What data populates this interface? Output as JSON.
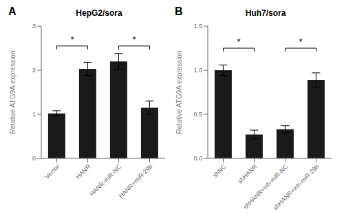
{
  "chart_data": [
    {
      "type": "bar",
      "panel_label": "A",
      "title": "HepG2/sora",
      "categories": [
        "Vector",
        "HANR",
        "HANR-miR-NC",
        "HANR+miR-29b"
      ],
      "values": [
        1.02,
        2.03,
        2.2,
        1.15
      ],
      "errors": [
        0.06,
        0.15,
        0.18,
        0.15
      ],
      "ylabel": "Relative ATG9A expression",
      "ylim": [
        0,
        3.0
      ],
      "yticks": [
        0,
        1,
        2,
        3
      ],
      "color": "#1a1a1a",
      "annotations": [
        {
          "label": "*",
          "from": "Vector",
          "to": "HANR",
          "y": 2.55
        },
        {
          "label": "*",
          "from": "HANR-miR-NC",
          "to": "HANR+miR-29b",
          "y": 2.55
        }
      ]
    },
    {
      "type": "bar",
      "panel_label": "B",
      "title": "Huh7/sora",
      "categories": [
        "shNC",
        "shHANR",
        "shHANR+inh-miR-NC",
        "shHANR+inh-miR-29b"
      ],
      "values": [
        1.0,
        0.27,
        0.33,
        0.89
      ],
      "errors": [
        0.06,
        0.05,
        0.04,
        0.08
      ],
      "ylabel": "Relative ATG9A expression",
      "ylim": [
        0,
        1.5
      ],
      "yticks": [
        {
          "value": 0,
          "label": "0.0"
        },
        0.5,
        {
          "value": 1,
          "label": "1.0"
        },
        1.5
      ],
      "color": "#1a1a1a",
      "annotations": [
        {
          "label": "*",
          "from": "shNC",
          "to": "shHANR",
          "y": 1.25
        },
        {
          "label": "*",
          "from": "shHANR+inh-miR-NC",
          "to": "shHANR+inh-miR-29b",
          "y": 1.25
        }
      ]
    }
  ]
}
